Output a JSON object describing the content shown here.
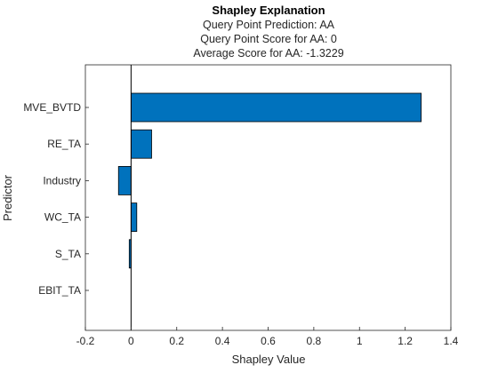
{
  "chart_data": {
    "type": "bar",
    "orientation": "horizontal",
    "title": "Shapley Explanation",
    "subtitle_lines": [
      "Query Point Prediction: AA",
      "Query Point Score for AA: 0",
      "Average Score for AA: -1.3229"
    ],
    "xlabel": "Shapley Value",
    "ylabel": "Predictor",
    "categories": [
      "MVE_BVTD",
      "RE_TA",
      "Industry",
      "WC_TA",
      "S_TA",
      "EBIT_TA"
    ],
    "values": [
      1.27,
      0.09,
      -0.055,
      0.025,
      -0.008,
      0.0
    ],
    "xlim": [
      -0.2,
      1.4
    ],
    "xticks": [
      -0.2,
      0,
      0.2,
      0.4,
      0.6,
      0.8,
      1,
      1.2,
      1.4
    ],
    "xtick_labels": [
      "-0.2",
      "0",
      "0.2",
      "0.4",
      "0.6",
      "0.8",
      "1",
      "1.2",
      "1.4"
    ],
    "grid": false,
    "bar_color": "#0072BD"
  }
}
